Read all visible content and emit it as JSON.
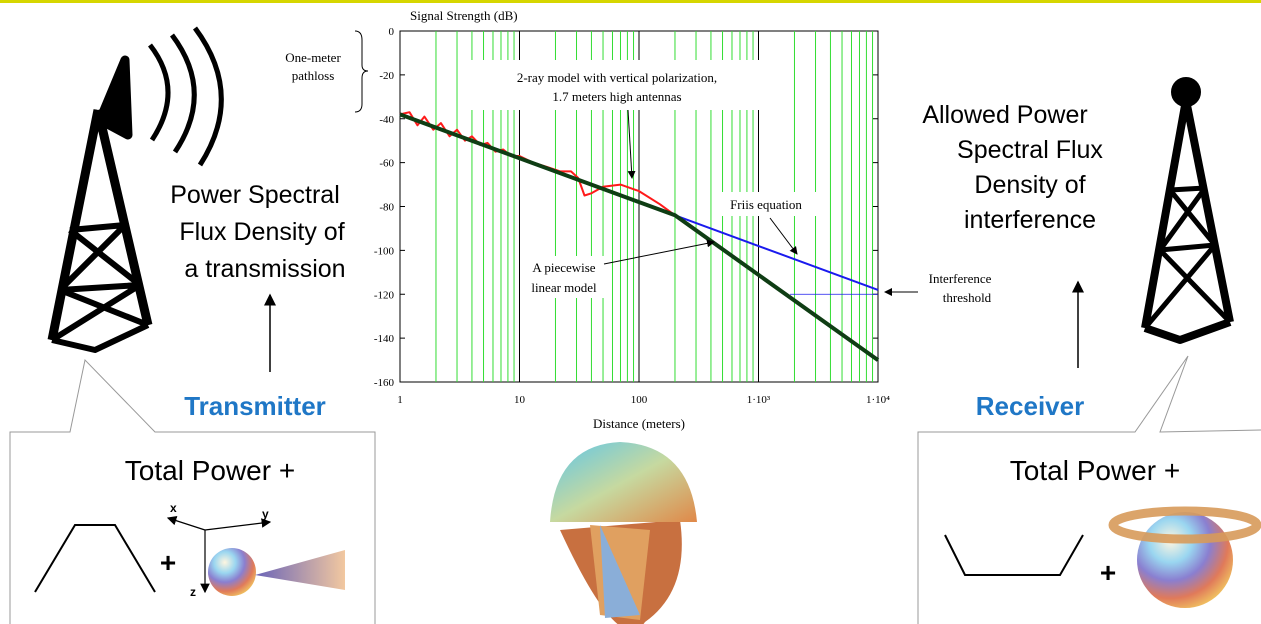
{
  "chart_data": {
    "type": "line",
    "ylabel": "Signal Strength (dB)",
    "xlabel": "Distance (meters)",
    "xscale": "log",
    "xlim": [
      1,
      10000
    ],
    "ylim": [
      -160,
      0
    ],
    "xticks": [
      1,
      10,
      100,
      {
        "value": 1000,
        "label": "1·10³"
      },
      {
        "value": 10000,
        "label": "1·10⁴"
      }
    ],
    "yticks": [
      0,
      -20,
      -40,
      -60,
      -80,
      -100,
      -120,
      -140,
      -160
    ],
    "minor_grid": true,
    "grid_color": "#33dd33",
    "series": [
      {
        "color": "#ff1a1a",
        "x": [
          1,
          1.2,
          1.4,
          1.6,
          1.9,
          2.2,
          2.6,
          3,
          3.5,
          4,
          4.7,
          5.4,
          6.3,
          7.3,
          8.5,
          10,
          13,
          17,
          22,
          27,
          31,
          35,
          40,
          50,
          70,
          100,
          150,
          200
        ],
        "values": [
          -38,
          -37,
          -43,
          -39,
          -45,
          -42,
          -48,
          -45,
          -50,
          -48,
          -52,
          -51,
          -55,
          -54,
          -57,
          -57,
          -60,
          -62,
          -64,
          -64,
          -67,
          -75,
          -74,
          -71,
          -70,
          -73,
          -79,
          -84
        ]
      },
      {
        "color": "#1a1aee",
        "x": [
          1,
          200,
          10000
        ],
        "values": [
          -38,
          -84,
          -118
        ]
      },
      {
        "color": "#0f3d14",
        "x": [
          1,
          200,
          10000
        ],
        "values": [
          -38,
          -84,
          -150
        ]
      }
    ],
    "threshold": -120,
    "annotations": {
      "one_meter": [
        "One-meter",
        "pathloss"
      ],
      "two_ray": [
        "2-ray model with vertical polarization,",
        "1.7 meters high antennas"
      ],
      "friis": [
        "Friis equation"
      ],
      "piecewise": [
        "A piecewise",
        "linear model"
      ],
      "interference": [
        "Interference",
        "threshold"
      ]
    }
  },
  "slide": {
    "left": {
      "caption": [
        "Power Spectral",
        "Flux Density of",
        "a transmission"
      ],
      "label": "Transmitter",
      "box_title": "Total Power +",
      "plus": "+",
      "axes": [
        "x",
        "y",
        "z"
      ]
    },
    "right": {
      "caption": [
        "Allowed Power",
        "Spectral Flux",
        "Density of",
        "interference"
      ],
      "label": "Receiver",
      "box_title": "Total Power +",
      "plus": "+"
    }
  }
}
